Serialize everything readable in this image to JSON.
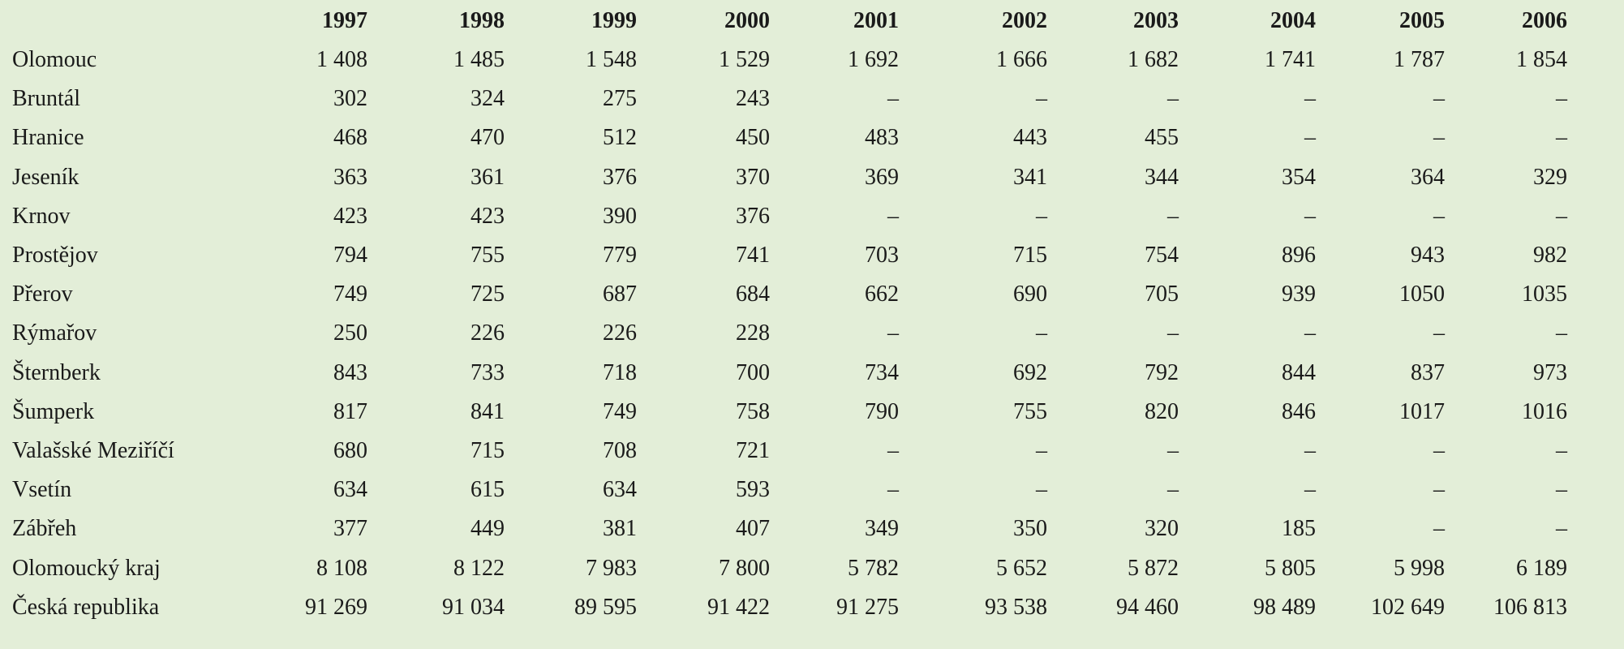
{
  "table": {
    "columns": [
      "1997",
      "1998",
      "1999",
      "2000",
      "2001",
      "2002",
      "2003",
      "2004",
      "2005",
      "2006"
    ],
    "rows": [
      {
        "label": "Olomouc",
        "cells": [
          "1 408",
          "1 485",
          "1 548",
          "1 529",
          "1 692",
          "1 666",
          "1 682",
          "1 741",
          "1 787",
          "1 854"
        ]
      },
      {
        "label": "Bruntál",
        "cells": [
          "302",
          "324",
          "275",
          "243",
          "–",
          "–",
          "–",
          "–",
          "–",
          "–"
        ]
      },
      {
        "label": "Hranice",
        "cells": [
          "468",
          "470",
          "512",
          "450",
          "483",
          "443",
          "455",
          "–",
          "–",
          "–"
        ]
      },
      {
        "label": "Jeseník",
        "cells": [
          "363",
          "361",
          "376",
          "370",
          "369",
          "341",
          "344",
          "354",
          "364",
          "329"
        ]
      },
      {
        "label": "Krnov",
        "cells": [
          "423",
          "423",
          "390",
          "376",
          "–",
          "–",
          "–",
          "–",
          "–",
          "–"
        ]
      },
      {
        "label": "Prostějov",
        "cells": [
          "794",
          "755",
          "779",
          "741",
          "703",
          "715",
          "754",
          "896",
          "943",
          "982"
        ]
      },
      {
        "label": "Přerov",
        "cells": [
          "749",
          "725",
          "687",
          "684",
          "662",
          "690",
          "705",
          "939",
          "1050",
          "1035"
        ]
      },
      {
        "label": "Rýmařov",
        "cells": [
          "250",
          "226",
          "226",
          "228",
          "–",
          "–",
          "–",
          "–",
          "–",
          "–"
        ]
      },
      {
        "label": "Šternberk",
        "cells": [
          "843",
          "733",
          "718",
          "700",
          "734",
          "692",
          "792",
          "844",
          "837",
          "973"
        ]
      },
      {
        "label": "Šumperk",
        "cells": [
          "817",
          "841",
          "749",
          "758",
          "790",
          "755",
          "820",
          "846",
          "1017",
          "1016"
        ]
      },
      {
        "label": "Valašské Meziříčí",
        "cells": [
          "680",
          "715",
          "708",
          "721",
          "–",
          "–",
          "–",
          "–",
          "–",
          "–"
        ]
      },
      {
        "label": "Vsetín",
        "cells": [
          "634",
          "615",
          "634",
          "593",
          "–",
          "–",
          "–",
          "–",
          "–",
          "–"
        ]
      },
      {
        "label": "Zábřeh",
        "cells": [
          "377",
          "449",
          "381",
          "407",
          "349",
          "350",
          "320",
          "185",
          "–",
          "–"
        ]
      },
      {
        "label": "Olomoucký kraj",
        "cells": [
          "8 108",
          "8 122",
          "7 983",
          "7 800",
          "5 782",
          "5 652",
          "5 872",
          "5 805",
          "5 998",
          "6 189"
        ]
      },
      {
        "label": "Česká republika",
        "cells": [
          "91 269",
          "91 034",
          "89 595",
          "91 422",
          "91 275",
          "93 538",
          "94 460",
          "98 489",
          "102 649",
          "106 813"
        ]
      }
    ]
  }
}
